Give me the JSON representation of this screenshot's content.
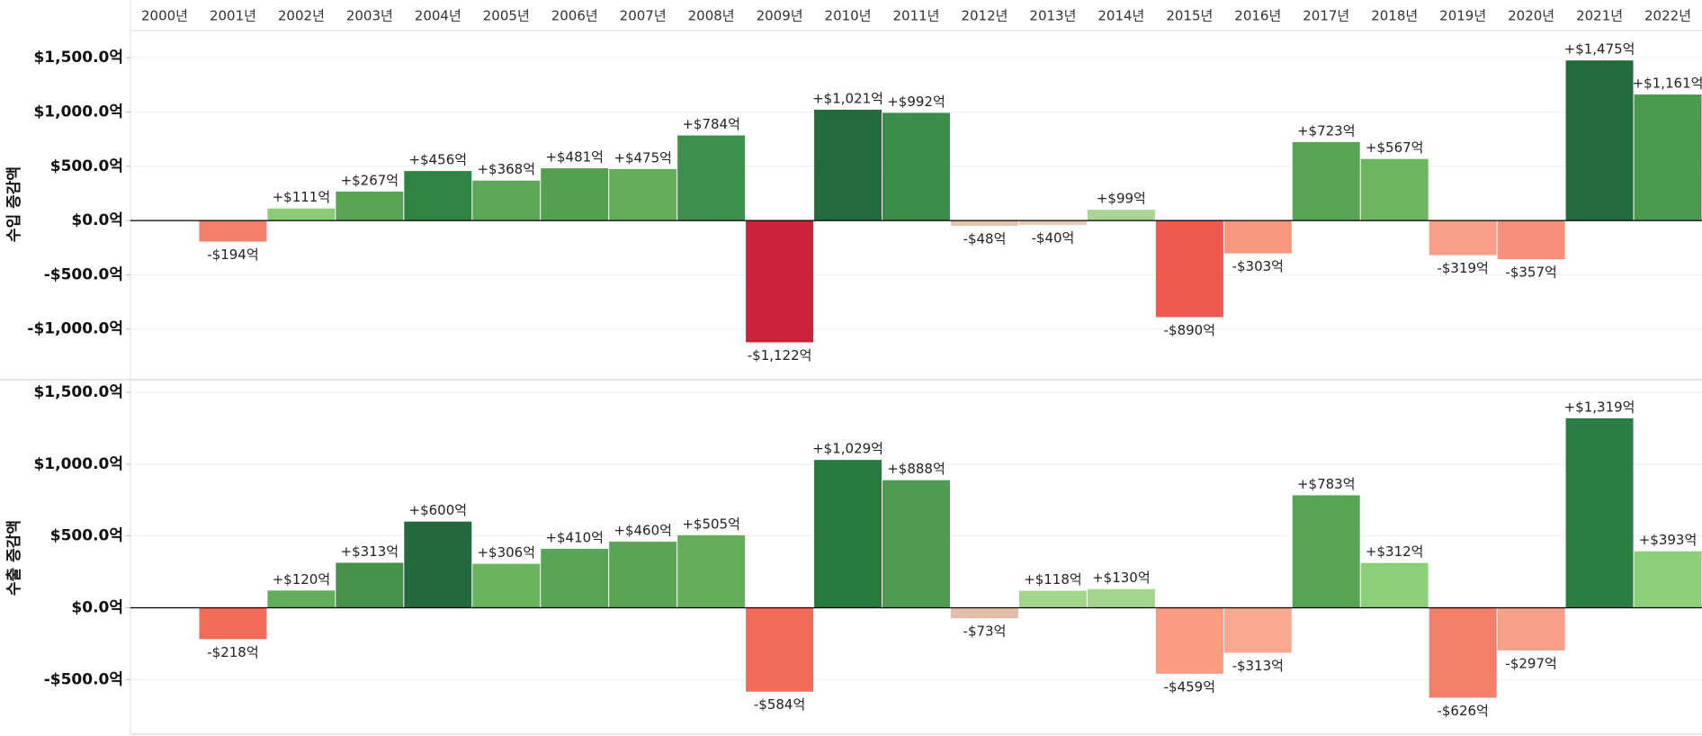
{
  "chart_data": [
    {
      "type": "bar",
      "y_label": "수입 증감액",
      "categories": [
        "2000년",
        "2001년",
        "2002년",
        "2003년",
        "2004년",
        "2005년",
        "2006년",
        "2007년",
        "2008년",
        "2009년",
        "2010년",
        "2011년",
        "2012년",
        "2013년",
        "2014년",
        "2015년",
        "2016년",
        "2017년",
        "2018년",
        "2019년",
        "2020년",
        "2021년",
        "2022년"
      ],
      "values": [
        null,
        -194,
        111,
        267,
        456,
        368,
        481,
        475,
        784,
        -1122,
        1021,
        992,
        -48,
        -40,
        99,
        -890,
        -303,
        723,
        567,
        -319,
        -357,
        1475,
        1161
      ],
      "value_labels": [
        null,
        "-$194억",
        "+$111억",
        "+$267억",
        "+$456억",
        "+$368억",
        "+$481억",
        "+$475억",
        "+$784억",
        "-$1,122억",
        "+$1,021억",
        "+$992억",
        "-$48억",
        "-$40억",
        "+$99억",
        "-$890억",
        "-$303억",
        "+$723억",
        "+$567억",
        "-$319억",
        "-$357억",
        "+$1,475억",
        "+$1,161억"
      ],
      "colors": [
        null,
        "#f4806a",
        "#8ccb75",
        "#5aa455",
        "#2e8442",
        "#5ba757",
        "#53a04f",
        "#64ad59",
        "#3e914c",
        "#cc2239",
        "#226b3e",
        "#3b8b4a",
        "#e2c3ad",
        "#e4cbb5",
        "#a7d592",
        "#ef5a4e",
        "#f9977f",
        "#57a454",
        "#6db55f",
        "#f9a08a",
        "#f7907b",
        "#226b3e",
        "#4a9a4f"
      ],
      "ylim": [
        -1450,
        1750
      ],
      "yticks": [
        {
          "value": 1500,
          "label": "$1,500.0억"
        },
        {
          "value": 1000,
          "label": "$1,000.0억"
        },
        {
          "value": 500,
          "label": "$500.0억"
        },
        {
          "value": 0,
          "label": "$0.0억"
        },
        {
          "value": -500,
          "label": "-$500.0억"
        },
        {
          "value": -1000,
          "label": "-$1,000.0억"
        }
      ],
      "grid": true
    },
    {
      "type": "bar",
      "y_label": "수출 증감액",
      "values": [
        null,
        -218,
        120,
        313,
        600,
        306,
        410,
        460,
        505,
        -584,
        1029,
        888,
        -73,
        118,
        130,
        -459,
        -313,
        783,
        312,
        -626,
        -297,
        1319,
        393
      ],
      "value_labels": [
        null,
        "-$218억",
        "+$120억",
        "+$313억",
        "+$600억",
        "+$306억",
        "+$410억",
        "+$460억",
        "+$505억",
        "-$584억",
        "+$1,029억",
        "+$888억",
        "-$73억",
        "+$118억",
        "+$130억",
        "-$459억",
        "-$313억",
        "+$783억",
        "+$312억",
        "-$626억",
        "-$297억",
        "+$1,319억",
        "+$393억"
      ],
      "colors": [
        null,
        "#f26c5a",
        "#62ad59",
        "#45914c",
        "#24683e",
        "#6ab45e",
        "#5aa555",
        "#5aa555",
        "#65ae59",
        "#f26b58",
        "#267a40",
        "#4d9b51",
        "#e2bfa8",
        "#a3d58d",
        "#a3d58d",
        "#f99b7e",
        "#f9a890",
        "#57a454",
        "#8ccf78",
        "#f28068",
        "#f9a08a",
        "#2b7e43",
        "#8ccf78"
      ],
      "ylim": [
        -880,
        1575
      ],
      "yticks": [
        {
          "value": 1500,
          "label": "$1,500.0억"
        },
        {
          "value": 1000,
          "label": "$1,000.0억"
        },
        {
          "value": 500,
          "label": "$500.0억"
        },
        {
          "value": 0,
          "label": "$0.0억"
        },
        {
          "value": -500,
          "label": "-$500.0억"
        }
      ],
      "grid": true
    }
  ]
}
